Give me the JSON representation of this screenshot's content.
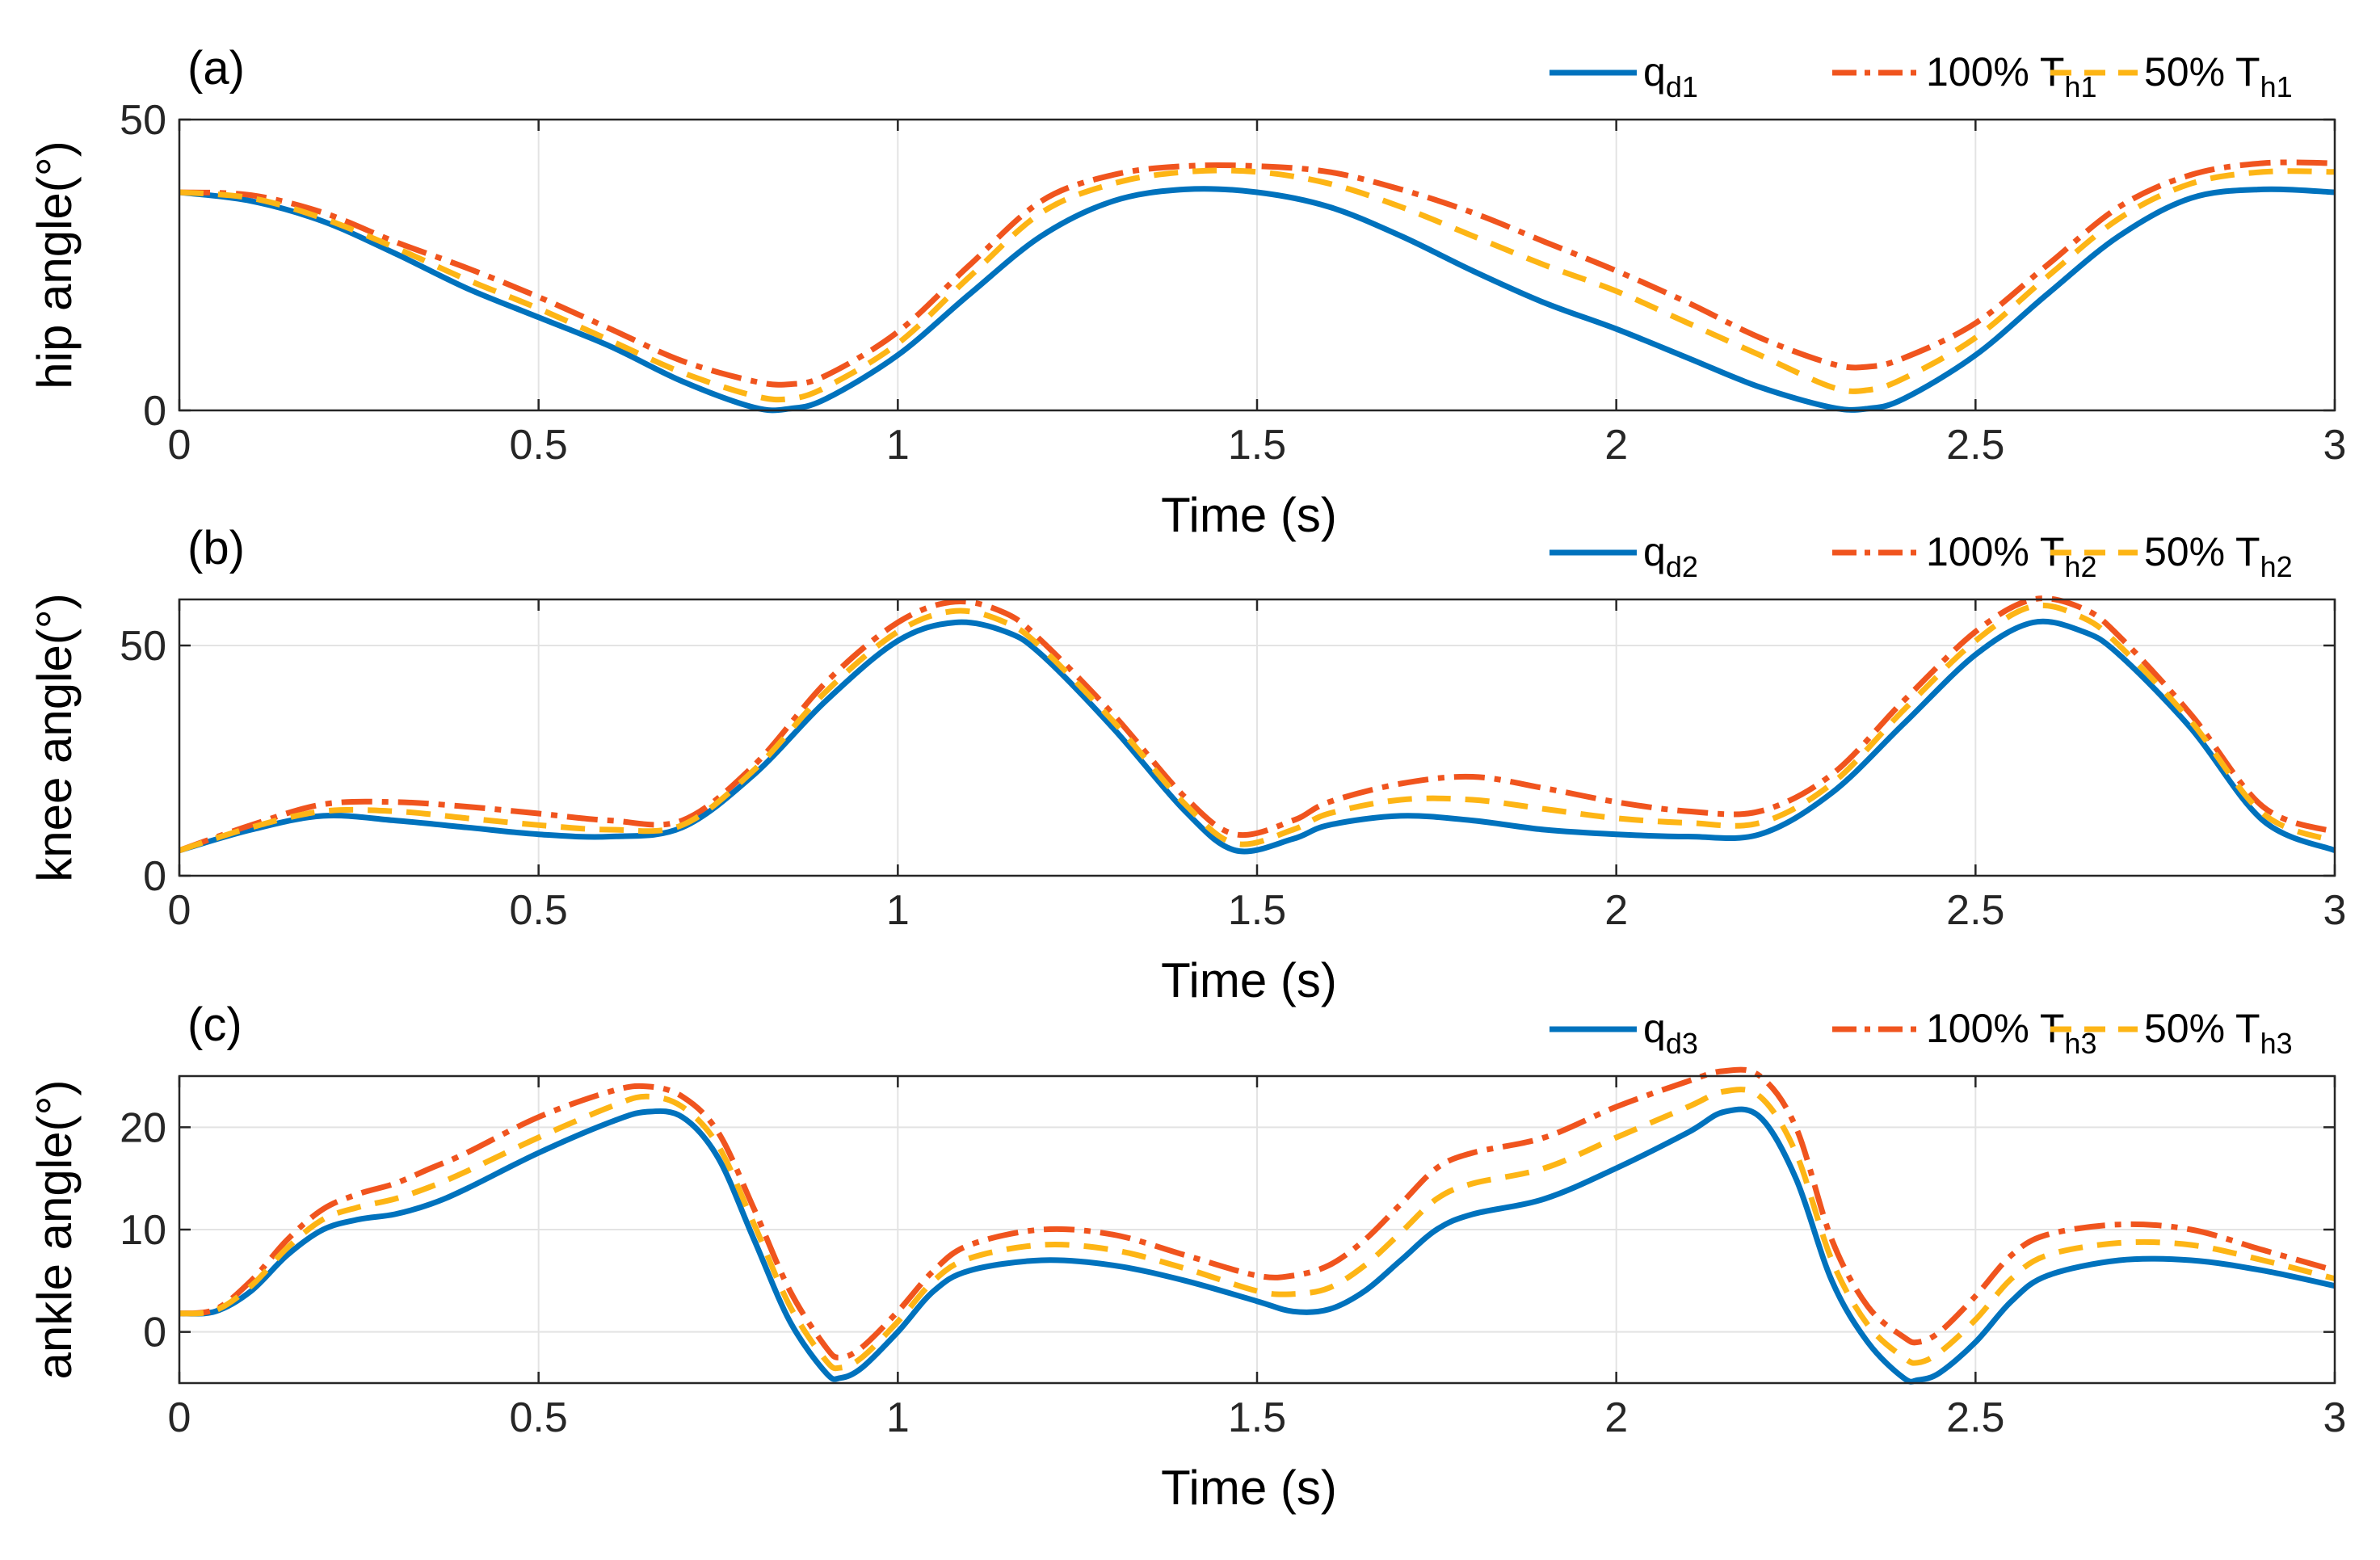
{
  "figure": {
    "colors": {
      "desired": "#0072BD",
      "full": "#F0541E",
      "half": "#FDB515",
      "grid": "#e3e3e3",
      "axis": "#262626"
    }
  },
  "chart_data": [
    {
      "type": "line",
      "panel_label": "(a)",
      "title": "",
      "xlabel": "Time (s)",
      "ylabel": "hip angle(°)",
      "xlim": [
        0,
        3
      ],
      "ylim": [
        0,
        50
      ],
      "x_ticks": [
        0,
        0.5,
        1,
        1.5,
        2,
        2.5,
        3
      ],
      "x_tick_labels": [
        "0",
        "0.5",
        "1",
        "1.5",
        "2",
        "2.5",
        "3"
      ],
      "y_ticks": [
        0,
        50
      ],
      "y_tick_labels": [
        "0",
        "50"
      ],
      "grid": true,
      "legend": {
        "placement": "top-right-outside",
        "entries": [
          {
            "main": "q",
            "sub": "d1",
            "style": "solid",
            "color": "#0072BD"
          },
          {
            "main": "100% T",
            "sub": "h1",
            "style": "dashdot",
            "color": "#F0541E"
          },
          {
            "main": "50% T",
            "sub": "h1",
            "style": "dashed",
            "color": "#FDB515"
          }
        ]
      },
      "x": [
        0,
        0.1,
        0.2,
        0.3,
        0.4,
        0.5,
        0.6,
        0.7,
        0.8,
        0.85,
        0.9,
        1.0,
        1.1,
        1.2,
        1.3,
        1.4,
        1.5,
        1.6,
        1.7,
        1.8,
        1.9,
        2.0,
        2.1,
        2.2,
        2.3,
        2.35,
        2.4,
        2.5,
        2.6,
        2.7,
        2.8,
        2.9,
        3.0
      ],
      "series": [
        {
          "name": "q_d1",
          "style": "solid",
          "color": "#0072BD",
          "values": [
            37.5,
            36,
            32.5,
            27,
            21,
            16,
            11,
            5,
            0.5,
            0.3,
            2,
            9.5,
            20,
            30,
            36,
            38,
            37.5,
            35,
            30,
            24,
            18.5,
            14,
            9,
            4,
            0.5,
            0.3,
            2,
            9.5,
            20,
            30,
            36.5,
            38,
            37.5
          ]
        },
        {
          "name": "100% T_h1",
          "style": "dashdot",
          "color": "#F0541E",
          "values": [
            37.5,
            37,
            34,
            29,
            24.5,
            19.5,
            14,
            8.5,
            5,
            4.5,
            6,
            13.5,
            25,
            36,
            40.5,
            42,
            42,
            41,
            38,
            34,
            29,
            24,
            18.5,
            12.5,
            8,
            7.5,
            9,
            15,
            25,
            35,
            40.5,
            42.5,
            42.5
          ]
        },
        {
          "name": "50% T_h1",
          "style": "dashed",
          "color": "#FDB515",
          "values": [
            37.5,
            36.5,
            33,
            28,
            22.5,
            17.5,
            12,
            6.5,
            2.5,
            2,
            4,
            11.5,
            23,
            34,
            39,
            41,
            41,
            39,
            35,
            30,
            25,
            20.5,
            15,
            9.5,
            4,
            3.5,
            5.5,
            12.5,
            23,
            33,
            39,
            41,
            41
          ]
        }
      ]
    },
    {
      "type": "line",
      "panel_label": "(b)",
      "title": "",
      "xlabel": "Time (s)",
      "ylabel": "knee angle(°)",
      "xlim": [
        0,
        3
      ],
      "ylim": [
        0,
        60
      ],
      "x_ticks": [
        0,
        0.5,
        1,
        1.5,
        2,
        2.5,
        3
      ],
      "x_tick_labels": [
        "0",
        "0.5",
        "1",
        "1.5",
        "2",
        "2.5",
        "3"
      ],
      "y_ticks": [
        0,
        50
      ],
      "y_tick_labels": [
        "0",
        "50"
      ],
      "grid": true,
      "legend": {
        "placement": "top-right-outside",
        "entries": [
          {
            "main": "q",
            "sub": "d2",
            "style": "solid",
            "color": "#0072BD"
          },
          {
            "main": "100% T",
            "sub": "h2",
            "style": "dashdot",
            "color": "#F0541E"
          },
          {
            "main": "50% T",
            "sub": "h2",
            "style": "dashed",
            "color": "#FDB515"
          }
        ]
      },
      "x": [
        0,
        0.1,
        0.2,
        0.3,
        0.4,
        0.5,
        0.6,
        0.7,
        0.8,
        0.9,
        1.0,
        1.08,
        1.15,
        1.2,
        1.3,
        1.4,
        1.47,
        1.55,
        1.6,
        1.7,
        1.8,
        1.9,
        2.0,
        2.1,
        2.2,
        2.3,
        2.4,
        2.5,
        2.58,
        2.65,
        2.7,
        2.8,
        2.9,
        3.0
      ],
      "series": [
        {
          "name": "q_d2",
          "style": "solid",
          "color": "#0072BD",
          "values": [
            5.5,
            10,
            13,
            12,
            10.5,
            9,
            8.5,
            10.5,
            22,
            38,
            51,
            55,
            53,
            48,
            32,
            14,
            5.5,
            8,
            11,
            13,
            12,
            10,
            9,
            8.5,
            9,
            18,
            33,
            48,
            55,
            53,
            48,
            32,
            12,
            5.5
          ]
        },
        {
          "name": "100% T_h2",
          "style": "dashdot",
          "color": "#F0541E",
          "values": [
            5.5,
            11,
            15.5,
            16,
            15,
            13.5,
            12,
            12,
            24,
            42,
            55,
            59.5,
            57,
            51,
            35,
            17,
            9,
            12,
            16,
            20,
            21.5,
            19,
            16,
            14,
            14,
            22,
            38,
            53,
            60,
            58,
            52,
            35,
            15,
            9.5
          ]
        },
        {
          "name": "50% T_h2",
          "style": "dashed",
          "color": "#FDB515",
          "values": [
            5.5,
            10.5,
            14,
            14,
            12.5,
            11,
            10,
            11,
            23,
            40,
            53,
            57.5,
            55,
            49.5,
            33.5,
            15.5,
            7,
            10,
            13.5,
            16.5,
            16.5,
            14.5,
            12.5,
            11.5,
            11.5,
            20,
            36,
            51,
            58.5,
            56,
            50,
            33.5,
            13.5,
            7.5
          ]
        }
      ]
    },
    {
      "type": "line",
      "panel_label": "(c)",
      "title": "",
      "xlabel": "Time (s)",
      "ylabel": "ankle angle(°)",
      "xlim": [
        0,
        3
      ],
      "ylim": [
        -5,
        25
      ],
      "x_ticks": [
        0,
        0.5,
        1,
        1.5,
        2,
        2.5,
        3
      ],
      "x_tick_labels": [
        "0",
        "0.5",
        "1",
        "1.5",
        "2",
        "2.5",
        "3"
      ],
      "y_ticks": [
        0,
        10,
        20
      ],
      "y_tick_labels": [
        "0",
        "10",
        "20"
      ],
      "grid": true,
      "legend": {
        "placement": "top-right-outside",
        "entries": [
          {
            "main": "q",
            "sub": "d3",
            "style": "solid",
            "color": "#0072BD"
          },
          {
            "main": "100% T",
            "sub": "h3",
            "style": "dashdot",
            "color": "#F0541E"
          },
          {
            "main": "50% T",
            "sub": "h3",
            "style": "dashed",
            "color": "#FDB515"
          }
        ]
      },
      "x": [
        0,
        0.05,
        0.1,
        0.15,
        0.2,
        0.25,
        0.3,
        0.35,
        0.4,
        0.5,
        0.6,
        0.65,
        0.7,
        0.75,
        0.8,
        0.85,
        0.9,
        0.92,
        0.95,
        1.0,
        1.05,
        1.1,
        1.2,
        1.3,
        1.4,
        1.5,
        1.55,
        1.6,
        1.65,
        1.7,
        1.75,
        1.8,
        1.9,
        2.0,
        2.1,
        2.15,
        2.2,
        2.25,
        2.3,
        2.35,
        2.4,
        2.42,
        2.45,
        2.5,
        2.55,
        2.6,
        2.7,
        2.8,
        2.9,
        3.0
      ],
      "series": [
        {
          "name": "q_d3",
          "style": "solid",
          "color": "#0072BD",
          "values": [
            1.8,
            2,
            4,
            7.5,
            10,
            11,
            11.5,
            12.5,
            14,
            17.5,
            20.5,
            21.5,
            21,
            17,
            9,
            1,
            -4,
            -4.5,
            -3.5,
            0,
            4,
            6,
            7,
            6.5,
            5,
            3,
            2,
            2.2,
            4,
            7,
            10,
            11.5,
            13,
            16,
            19.5,
            21.5,
            21,
            15,
            5,
            -1,
            -4.5,
            -4.7,
            -4,
            -1,
            3,
            5.5,
            7,
            7,
            6,
            4.5
          ]
        },
        {
          "name": "100% T_h3",
          "style": "dashdot",
          "color": "#F0541E",
          "values": [
            1.8,
            2.2,
            5,
            9,
            12,
            13.5,
            14.5,
            16,
            17.5,
            21,
            23.5,
            24,
            23,
            19.5,
            12,
            4,
            -1.5,
            -2.5,
            -1.5,
            2,
            6,
            8.5,
            10,
            9.5,
            7.5,
            5.5,
            5.5,
            6.5,
            9,
            12.5,
            16,
            17.5,
            19,
            22,
            24.5,
            25.5,
            25,
            20,
            9,
            2.5,
            -0.5,
            -1,
            0,
            3.5,
            7.5,
            9.5,
            10.5,
            10,
            8,
            6
          ]
        },
        {
          "name": "50% T_h3",
          "style": "dashed",
          "color": "#FDB515",
          "values": [
            1.8,
            2.1,
            4.5,
            8.2,
            11,
            12.2,
            13,
            14.2,
            15.7,
            19,
            22,
            23,
            22,
            18.2,
            10.5,
            2.5,
            -2.8,
            -3.5,
            -2.5,
            1,
            5,
            7.2,
            8.5,
            8,
            6.2,
            4,
            3.7,
            4.3,
            6.5,
            9.7,
            13,
            14.5,
            16,
            19,
            22,
            23.5,
            23,
            17.5,
            7,
            0.7,
            -2.5,
            -3,
            -2,
            1.2,
            5.2,
            7.5,
            8.7,
            8.5,
            7,
            5.2
          ]
        }
      ]
    }
  ]
}
